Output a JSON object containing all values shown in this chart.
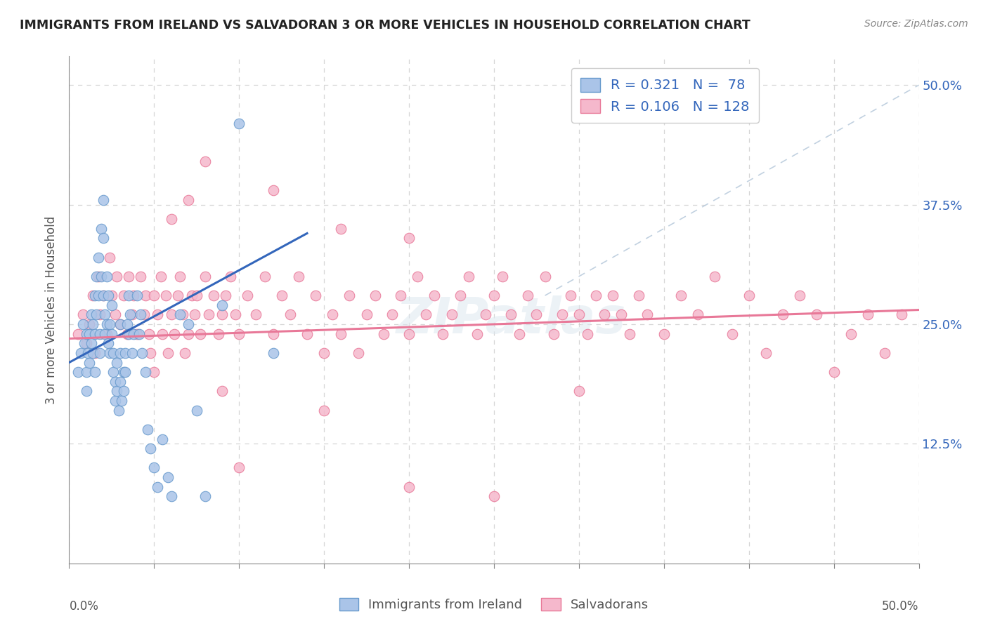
{
  "title": "IMMIGRANTS FROM IRELAND VS SALVADORAN 3 OR MORE VEHICLES IN HOUSEHOLD CORRELATION CHART",
  "source": "Source: ZipAtlas.com",
  "ylabel": "3 or more Vehicles in Household",
  "ytick_vals": [
    0.125,
    0.25,
    0.375,
    0.5
  ],
  "xlim": [
    0.0,
    0.5
  ],
  "ylim": [
    0.0,
    0.53
  ],
  "ireland_color": "#aac4e8",
  "ireland_edge": "#6699cc",
  "salvadoran_color": "#f5b8cc",
  "salvadoran_edge": "#e87898",
  "ireland_R": 0.321,
  "ireland_N": 78,
  "salvadoran_R": 0.106,
  "salvadoran_N": 128,
  "legend_label_ireland": "Immigrants from Ireland",
  "legend_label_salvadoran": "Salvadorans",
  "ireland_line_color": "#3366bb",
  "salvadoran_line_color": "#e87898",
  "diag_color": "#bbccdd",
  "watermark": "ZIPatlas",
  "background_color": "#ffffff",
  "grid_color": "#cccccc",
  "ireland_scatter_x": [
    0.005,
    0.007,
    0.008,
    0.009,
    0.01,
    0.01,
    0.01,
    0.011,
    0.012,
    0.012,
    0.013,
    0.013,
    0.014,
    0.014,
    0.015,
    0.015,
    0.015,
    0.016,
    0.016,
    0.017,
    0.017,
    0.018,
    0.018,
    0.019,
    0.019,
    0.02,
    0.02,
    0.02,
    0.021,
    0.021,
    0.022,
    0.022,
    0.023,
    0.023,
    0.024,
    0.024,
    0.025,
    0.025,
    0.026,
    0.026,
    0.027,
    0.027,
    0.028,
    0.028,
    0.029,
    0.03,
    0.03,
    0.03,
    0.031,
    0.032,
    0.032,
    0.033,
    0.033,
    0.034,
    0.035,
    0.035,
    0.036,
    0.037,
    0.038,
    0.04,
    0.041,
    0.042,
    0.043,
    0.045,
    0.046,
    0.048,
    0.05,
    0.052,
    0.055,
    0.058,
    0.06,
    0.065,
    0.07,
    0.075,
    0.08,
    0.09,
    0.1,
    0.12
  ],
  "ireland_scatter_y": [
    0.2,
    0.22,
    0.25,
    0.23,
    0.24,
    0.2,
    0.18,
    0.22,
    0.24,
    0.21,
    0.26,
    0.23,
    0.25,
    0.22,
    0.28,
    0.24,
    0.2,
    0.3,
    0.26,
    0.32,
    0.28,
    0.24,
    0.22,
    0.35,
    0.3,
    0.38,
    0.34,
    0.28,
    0.26,
    0.24,
    0.3,
    0.25,
    0.28,
    0.23,
    0.25,
    0.22,
    0.27,
    0.24,
    0.22,
    0.2,
    0.19,
    0.17,
    0.21,
    0.18,
    0.16,
    0.25,
    0.22,
    0.19,
    0.17,
    0.2,
    0.18,
    0.22,
    0.2,
    0.25,
    0.28,
    0.24,
    0.26,
    0.22,
    0.24,
    0.28,
    0.24,
    0.26,
    0.22,
    0.2,
    0.14,
    0.12,
    0.1,
    0.08,
    0.13,
    0.09,
    0.07,
    0.26,
    0.25,
    0.16,
    0.07,
    0.27,
    0.46,
    0.22
  ],
  "salvadoran_scatter_x": [
    0.005,
    0.008,
    0.01,
    0.012,
    0.014,
    0.015,
    0.017,
    0.018,
    0.02,
    0.022,
    0.024,
    0.025,
    0.027,
    0.028,
    0.03,
    0.032,
    0.034,
    0.035,
    0.037,
    0.038,
    0.04,
    0.042,
    0.044,
    0.045,
    0.047,
    0.048,
    0.05,
    0.052,
    0.054,
    0.055,
    0.057,
    0.058,
    0.06,
    0.062,
    0.064,
    0.065,
    0.067,
    0.068,
    0.07,
    0.072,
    0.074,
    0.075,
    0.077,
    0.08,
    0.082,
    0.085,
    0.088,
    0.09,
    0.092,
    0.095,
    0.098,
    0.1,
    0.105,
    0.11,
    0.115,
    0.12,
    0.125,
    0.13,
    0.135,
    0.14,
    0.145,
    0.15,
    0.155,
    0.16,
    0.165,
    0.17,
    0.175,
    0.18,
    0.185,
    0.19,
    0.195,
    0.2,
    0.205,
    0.21,
    0.215,
    0.22,
    0.225,
    0.23,
    0.235,
    0.24,
    0.245,
    0.25,
    0.255,
    0.26,
    0.265,
    0.27,
    0.275,
    0.28,
    0.285,
    0.29,
    0.295,
    0.3,
    0.305,
    0.31,
    0.315,
    0.32,
    0.325,
    0.33,
    0.335,
    0.34,
    0.35,
    0.36,
    0.37,
    0.38,
    0.39,
    0.4,
    0.41,
    0.42,
    0.43,
    0.44,
    0.45,
    0.46,
    0.47,
    0.48,
    0.49,
    0.05,
    0.06,
    0.07,
    0.08,
    0.09,
    0.1,
    0.15,
    0.2,
    0.25,
    0.3,
    0.12,
    0.16,
    0.2
  ],
  "salvadoran_scatter_y": [
    0.24,
    0.26,
    0.23,
    0.25,
    0.28,
    0.22,
    0.3,
    0.26,
    0.28,
    0.24,
    0.32,
    0.28,
    0.26,
    0.3,
    0.25,
    0.28,
    0.24,
    0.3,
    0.26,
    0.28,
    0.24,
    0.3,
    0.26,
    0.28,
    0.24,
    0.22,
    0.28,
    0.26,
    0.3,
    0.24,
    0.28,
    0.22,
    0.26,
    0.24,
    0.28,
    0.3,
    0.26,
    0.22,
    0.24,
    0.28,
    0.26,
    0.28,
    0.24,
    0.3,
    0.26,
    0.28,
    0.24,
    0.26,
    0.28,
    0.3,
    0.26,
    0.24,
    0.28,
    0.26,
    0.3,
    0.24,
    0.28,
    0.26,
    0.3,
    0.24,
    0.28,
    0.22,
    0.26,
    0.24,
    0.28,
    0.22,
    0.26,
    0.28,
    0.24,
    0.26,
    0.28,
    0.24,
    0.3,
    0.26,
    0.28,
    0.24,
    0.26,
    0.28,
    0.3,
    0.24,
    0.26,
    0.28,
    0.3,
    0.26,
    0.24,
    0.28,
    0.26,
    0.3,
    0.24,
    0.26,
    0.28,
    0.26,
    0.24,
    0.28,
    0.26,
    0.28,
    0.26,
    0.24,
    0.28,
    0.26,
    0.24,
    0.28,
    0.26,
    0.3,
    0.24,
    0.28,
    0.22,
    0.26,
    0.28,
    0.26,
    0.2,
    0.24,
    0.26,
    0.22,
    0.26,
    0.2,
    0.36,
    0.38,
    0.42,
    0.18,
    0.1,
    0.16,
    0.08,
    0.07,
    0.18,
    0.39,
    0.35,
    0.34
  ],
  "ireland_line_x": [
    0.0,
    0.14
  ],
  "ireland_line_y": [
    0.21,
    0.345
  ],
  "salvadoran_line_x": [
    0.0,
    0.5
  ],
  "salvadoran_line_y": [
    0.235,
    0.265
  ],
  "diag_line_x": [
    0.0,
    0.5
  ],
  "diag_line_y": [
    0.0,
    0.5
  ]
}
